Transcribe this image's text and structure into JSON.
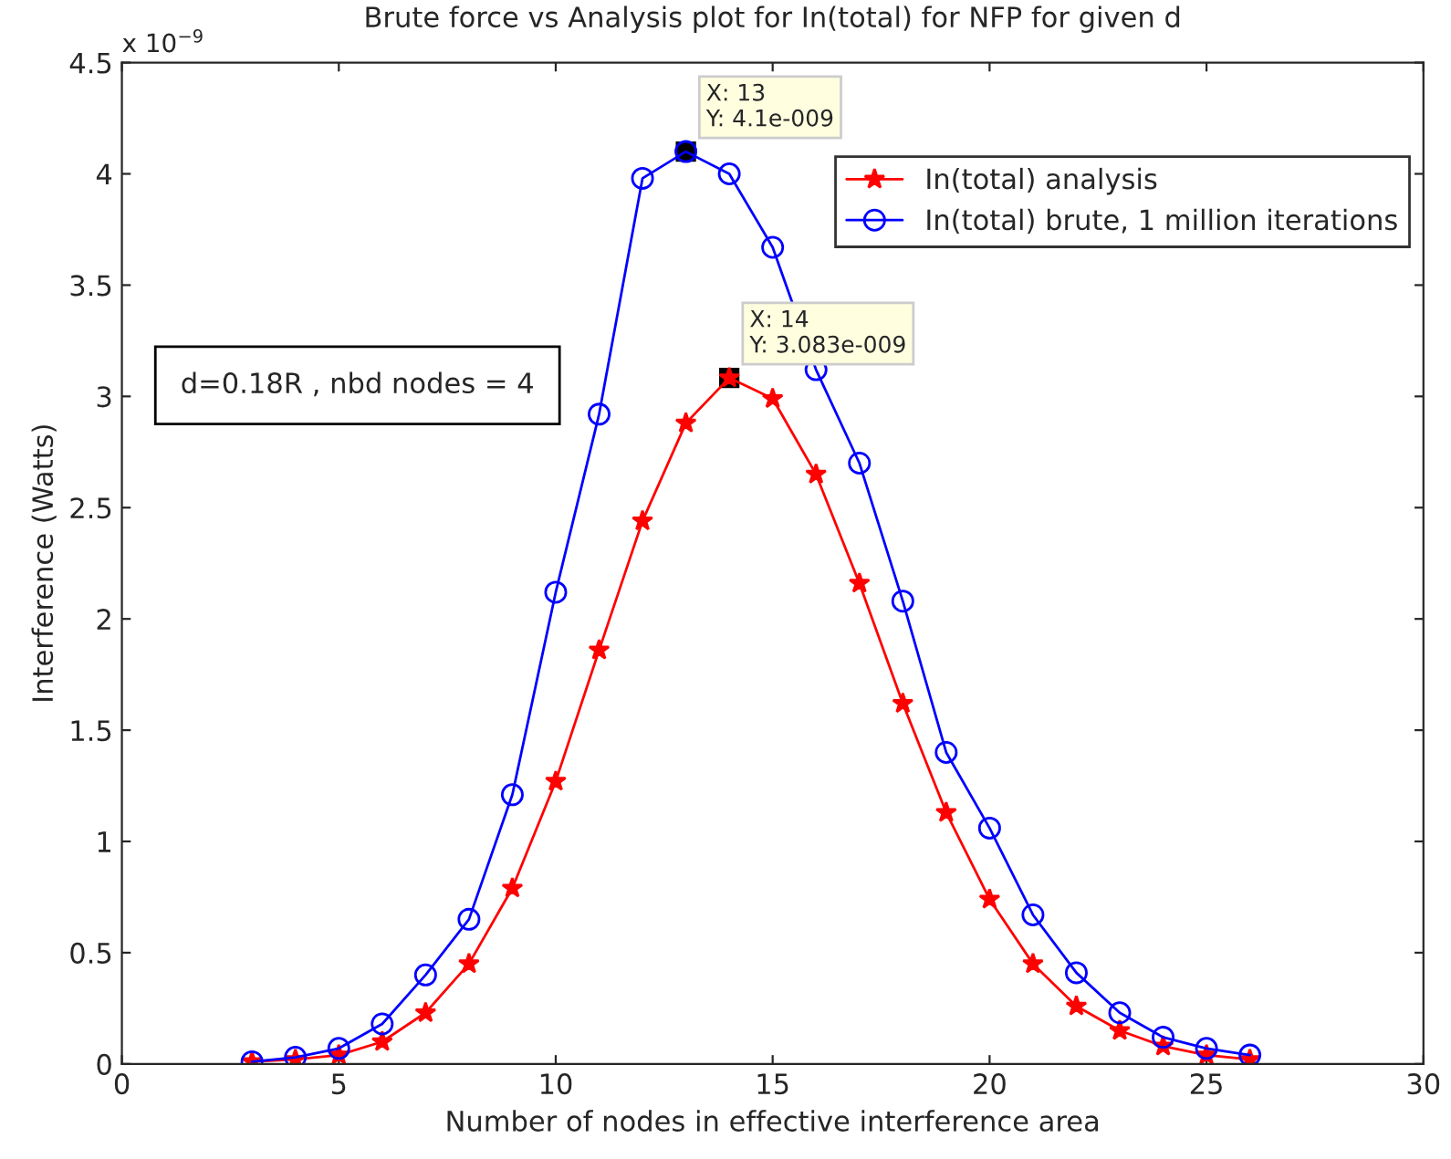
{
  "chart_data": {
    "type": "line",
    "title": "Brute force vs Analysis plot for In(total) for NFP for given d",
    "xlabel": "Number of nodes in effective interference area",
    "ylabel": "Interference (Watts)",
    "x": [
      3,
      4,
      5,
      6,
      7,
      8,
      9,
      10,
      11,
      12,
      13,
      14,
      15,
      16,
      17,
      18,
      19,
      20,
      21,
      22,
      23,
      24,
      25,
      26
    ],
    "series": [
      {
        "name": "In(total) analysis",
        "color": "#ff0000",
        "marker": "star",
        "values": [
          0.01,
          0.02,
          0.04,
          0.1,
          0.23,
          0.45,
          0.79,
          1.27,
          1.86,
          2.44,
          2.88,
          3.083,
          2.99,
          2.65,
          2.16,
          1.62,
          1.13,
          0.74,
          0.45,
          0.26,
          0.15,
          0.08,
          0.04,
          0.02
        ]
      },
      {
        "name": "In(total) brute, 1 million iterations",
        "color": "#0000ff",
        "marker": "circle",
        "values": [
          0.01,
          0.03,
          0.07,
          0.18,
          0.4,
          0.65,
          1.21,
          2.12,
          2.92,
          3.98,
          4.1,
          4.0,
          3.67,
          3.12,
          2.7,
          2.08,
          1.4,
          1.06,
          0.67,
          0.41,
          0.23,
          0.12,
          0.07,
          0.04
        ]
      }
    ],
    "annotations": [
      {
        "text": "X: 13\nY: 4.1e-009",
        "x": 13,
        "y": 4.1
      },
      {
        "text": "X: 14\nY: 3.083e-009",
        "x": 14,
        "y": 3.083
      },
      "d=0.18R , nbd nodes = 4",
      "x 10$^{−9}$"
    ],
    "xlim": [
      0,
      30
    ],
    "xticks": [
      0,
      5,
      10,
      15,
      20,
      25,
      30
    ],
    "ylim": [
      0,
      4.5
    ],
    "yticks": [
      0,
      0.5,
      1,
      1.5,
      2,
      2.5,
      3,
      3.5,
      4,
      4.5
    ],
    "grid": false,
    "legend": "top right",
    "line_style": "solid"
  }
}
